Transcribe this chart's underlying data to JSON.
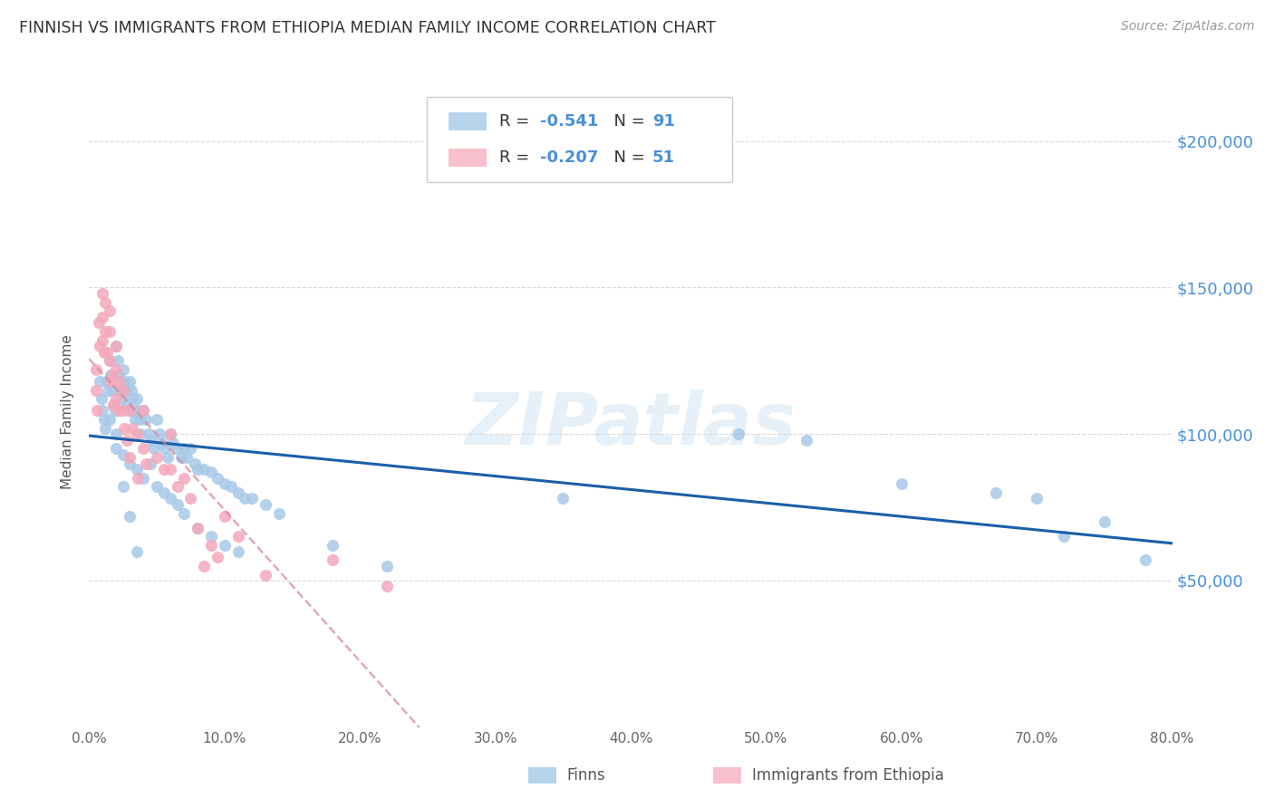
{
  "title": "FINNISH VS IMMIGRANTS FROM ETHIOPIA MEDIAN FAMILY INCOME CORRELATION CHART",
  "source": "Source: ZipAtlas.com",
  "ylabel": "Median Family Income",
  "ytick_labels": [
    "$50,000",
    "$100,000",
    "$150,000",
    "$200,000"
  ],
  "ytick_values": [
    50000,
    100000,
    150000,
    200000
  ],
  "ymin": 0,
  "ymax": 215000,
  "xmin": 0.0,
  "xmax": 0.8,
  "watermark": "ZIPatlas",
  "label_finns": "Finns",
  "label_ethiopia": "Immigrants from Ethiopia",
  "blue_scatter": "#a8c8e8",
  "pink_scatter": "#f4a8bc",
  "trend_blue": "#1a5faa",
  "trend_pink": "#d08898",
  "axis_color": "#4a90d9",
  "grid_color": "#d8d8d8",
  "legend_blue_patch": "#b8d4ec",
  "legend_pink_patch": "#f8c0cc",
  "finns_x": [
    0.008,
    0.009,
    0.01,
    0.011,
    0.012,
    0.013,
    0.014,
    0.015,
    0.016,
    0.017,
    0.018,
    0.019,
    0.02,
    0.021,
    0.022,
    0.023,
    0.024,
    0.025,
    0.026,
    0.027,
    0.028,
    0.029,
    0.03,
    0.031,
    0.032,
    0.033,
    0.034,
    0.035,
    0.036,
    0.037,
    0.038,
    0.04,
    0.042,
    0.044,
    0.046,
    0.048,
    0.05,
    0.052,
    0.054,
    0.056,
    0.058,
    0.06,
    0.062,
    0.065,
    0.068,
    0.07,
    0.072,
    0.075,
    0.078,
    0.08,
    0.085,
    0.09,
    0.095,
    0.1,
    0.105,
    0.11,
    0.115,
    0.12,
    0.13,
    0.14,
    0.015,
    0.02,
    0.025,
    0.03,
    0.035,
    0.04,
    0.045,
    0.05,
    0.055,
    0.06,
    0.065,
    0.07,
    0.08,
    0.09,
    0.1,
    0.11,
    0.18,
    0.22,
    0.35,
    0.48,
    0.53,
    0.6,
    0.67,
    0.7,
    0.72,
    0.75,
    0.78,
    0.02,
    0.025,
    0.03,
    0.035
  ],
  "finns_y": [
    118000,
    112000,
    108000,
    105000,
    102000,
    118000,
    115000,
    125000,
    120000,
    115000,
    110000,
    108000,
    130000,
    125000,
    120000,
    115000,
    112000,
    122000,
    118000,
    115000,
    110000,
    108000,
    118000,
    115000,
    112000,
    108000,
    105000,
    112000,
    108000,
    105000,
    100000,
    108000,
    105000,
    100000,
    98000,
    95000,
    105000,
    100000,
    97000,
    95000,
    92000,
    100000,
    97000,
    95000,
    92000,
    95000,
    92000,
    95000,
    90000,
    88000,
    88000,
    87000,
    85000,
    83000,
    82000,
    80000,
    78000,
    78000,
    76000,
    73000,
    105000,
    95000,
    93000,
    90000,
    88000,
    85000,
    90000,
    82000,
    80000,
    78000,
    76000,
    73000,
    68000,
    65000,
    62000,
    60000,
    62000,
    55000,
    78000,
    100000,
    98000,
    83000,
    80000,
    78000,
    65000,
    70000,
    57000,
    100000,
    82000,
    72000,
    60000
  ],
  "ethiopia_x": [
    0.005,
    0.005,
    0.006,
    0.007,
    0.008,
    0.01,
    0.01,
    0.01,
    0.011,
    0.012,
    0.012,
    0.013,
    0.015,
    0.015,
    0.015,
    0.016,
    0.017,
    0.018,
    0.02,
    0.02,
    0.02,
    0.022,
    0.022,
    0.025,
    0.025,
    0.026,
    0.028,
    0.03,
    0.03,
    0.032,
    0.035,
    0.036,
    0.04,
    0.04,
    0.042,
    0.05,
    0.055,
    0.06,
    0.06,
    0.065,
    0.07,
    0.075,
    0.08,
    0.085,
    0.09,
    0.095,
    0.1,
    0.11,
    0.13,
    0.18,
    0.22
  ],
  "ethiopia_y": [
    122000,
    115000,
    108000,
    138000,
    130000,
    148000,
    140000,
    132000,
    128000,
    145000,
    135000,
    128000,
    142000,
    135000,
    125000,
    118000,
    120000,
    110000,
    130000,
    122000,
    112000,
    118000,
    108000,
    115000,
    108000,
    102000,
    98000,
    108000,
    92000,
    102000,
    100000,
    85000,
    108000,
    95000,
    90000,
    92000,
    88000,
    100000,
    88000,
    82000,
    85000,
    78000,
    68000,
    55000,
    62000,
    58000,
    72000,
    65000,
    52000,
    57000,
    48000
  ]
}
